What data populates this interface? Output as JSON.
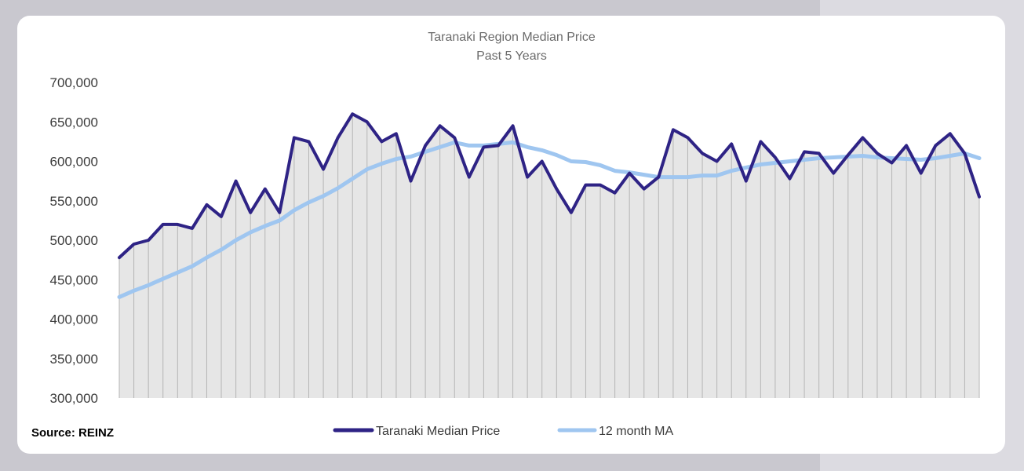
{
  "source_label": "Source: REINZ",
  "colors": {
    "median": "#2e2385",
    "ma": "#9fc6f0",
    "area": "#e6e6e6",
    "drop_lines": "#b5b5b5"
  },
  "chart_data": {
    "type": "line",
    "title": "Taranaki Region Median Price",
    "subtitle": "Past 5 Years",
    "ylim": [
      300000,
      700000
    ],
    "y_ticks": [
      "700,000",
      "650,000",
      "600,000",
      "550,000",
      "500,000",
      "450,000",
      "400,000",
      "350,000",
      "300,000"
    ],
    "y_tick_values": [
      700000,
      650000,
      600000,
      550000,
      500000,
      450000,
      400000,
      350000,
      300000
    ],
    "grid": false,
    "legend_position": "bottom",
    "series": [
      {
        "name": "Taranaki Median Price",
        "values": [
          478000,
          495000,
          500000,
          520000,
          520000,
          515000,
          545000,
          530000,
          575000,
          535000,
          565000,
          535000,
          630000,
          625000,
          590000,
          630000,
          660000,
          650000,
          625000,
          635000,
          575000,
          620000,
          645000,
          630000,
          580000,
          618000,
          620000,
          645000,
          580000,
          600000,
          565000,
          535000,
          570000,
          570000,
          560000,
          585000,
          565000,
          580000,
          640000,
          630000,
          610000,
          600000,
          622000,
          575000,
          625000,
          605000,
          578000,
          612000,
          610000,
          585000,
          608000,
          630000,
          610000,
          598000,
          620000,
          585000,
          620000,
          635000,
          610000,
          555000
        ]
      },
      {
        "name": "12 month MA",
        "values": [
          428000,
          436000,
          443000,
          451000,
          459000,
          467000,
          478000,
          488000,
          500000,
          510000,
          518000,
          525000,
          538000,
          548000,
          556000,
          566000,
          578000,
          590000,
          597000,
          603000,
          606000,
          612000,
          618000,
          624000,
          620000,
          620000,
          622000,
          624000,
          618000,
          614000,
          608000,
          600000,
          599000,
          595000,
          588000,
          586000,
          583000,
          580000,
          580000,
          580000,
          582000,
          582000,
          588000,
          592000,
          596000,
          598000,
          600000,
          602000,
          604000,
          605000,
          606000,
          607000,
          605000,
          604000,
          603000,
          602000,
          604000,
          607000,
          610000,
          604000
        ]
      }
    ]
  }
}
